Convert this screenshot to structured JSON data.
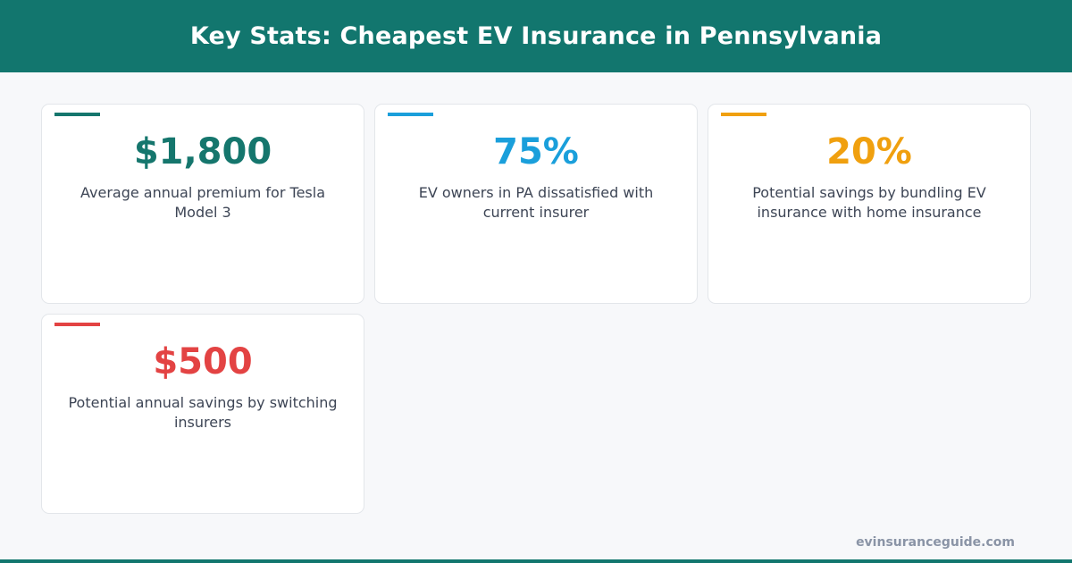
{
  "header": {
    "title": "Key Stats: Cheapest EV Insurance in Pennsylvania"
  },
  "cards": [
    {
      "value": "$1,800",
      "label": "Average annual premium for Tesla Model 3",
      "color": "#15766d"
    },
    {
      "value": "75%",
      "label": "EV owners in PA dissatisfied with current insurer",
      "color": "#1a9fdb"
    },
    {
      "value": "20%",
      "label": "Potential savings by bundling EV insurance with home insurance",
      "color": "#f0a00f"
    },
    {
      "value": "$500",
      "label": "Potential annual savings by switching insurers",
      "color": "#e34343"
    }
  ],
  "footer": {
    "source": "evinsuranceguide.com"
  }
}
